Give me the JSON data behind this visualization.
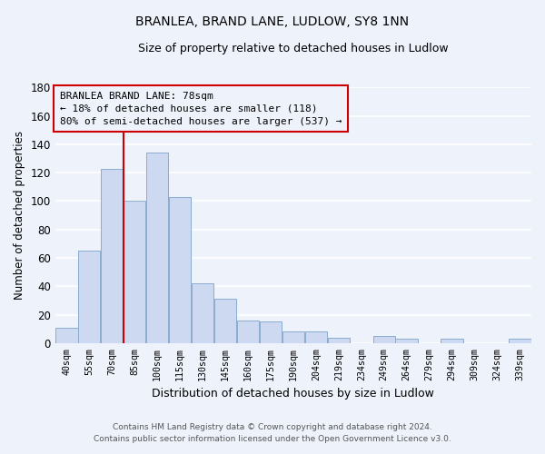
{
  "title": "BRANLEA, BRAND LANE, LUDLOW, SY8 1NN",
  "subtitle": "Size of property relative to detached houses in Ludlow",
  "xlabel": "Distribution of detached houses by size in Ludlow",
  "ylabel": "Number of detached properties",
  "bar_color": "#ccd9f0",
  "bar_edge_color": "#8aabcf",
  "categories": [
    "40sqm",
    "55sqm",
    "70sqm",
    "85sqm",
    "100sqm",
    "115sqm",
    "130sqm",
    "145sqm",
    "160sqm",
    "175sqm",
    "190sqm",
    "204sqm",
    "219sqm",
    "234sqm",
    "249sqm",
    "264sqm",
    "279sqm",
    "294sqm",
    "309sqm",
    "324sqm",
    "339sqm"
  ],
  "values": [
    11,
    65,
    123,
    100,
    134,
    103,
    42,
    31,
    16,
    15,
    8,
    8,
    4,
    0,
    5,
    3,
    0,
    3,
    0,
    0,
    3
  ],
  "ylim": [
    0,
    180
  ],
  "yticks": [
    0,
    20,
    40,
    60,
    80,
    100,
    120,
    140,
    160,
    180
  ],
  "property_line_label": "BRANLEA BRAND LANE: 78sqm",
  "annotation_line1": "← 18% of detached houses are smaller (118)",
  "annotation_line2": "80% of semi-detached houses are larger (537) →",
  "footer1": "Contains HM Land Registry data © Crown copyright and database right 2024.",
  "footer2": "Contains public sector information licensed under the Open Government Licence v3.0.",
  "background_color": "#eef2fb",
  "grid_color": "#ffffff",
  "annotation_box_color": "#eef2fb",
  "annotation_box_edge": "#cc0000",
  "red_line_color": "#cc0000",
  "line_x_index": 2.53
}
